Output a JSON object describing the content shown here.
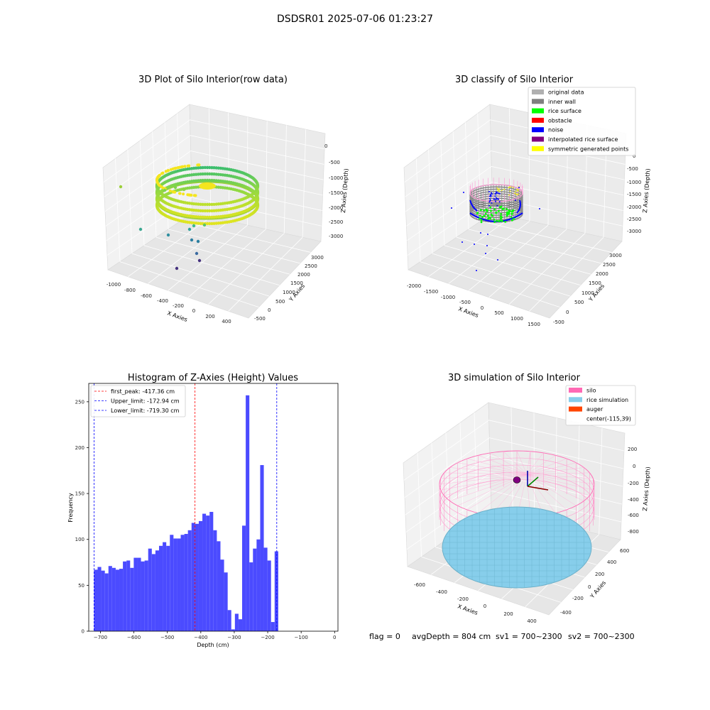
{
  "figure": {
    "suptitle": "DSDSR01 2025-07-06 01:23:27",
    "info_line": {
      "flag": "flag = 0",
      "avg_depth": "avgDepth = 804 cm",
      "sv1": "sv1 = 700~2300",
      "sv2": "sv2 = 700~2300"
    }
  },
  "panels": {
    "raw": {
      "title": "3D Plot of Silo Interior(row data)",
      "xlabel": "X Axies",
      "ylabel": "Y Axies",
      "zlabel": "Z Axies (Depth)",
      "xticks": [
        "-1000",
        "-800",
        "-600",
        "-400",
        "-200",
        "0",
        "200",
        "400"
      ],
      "yticks": [
        "-500",
        "0",
        "500",
        "1000",
        "1500",
        "2000",
        "2500",
        "3000"
      ],
      "zticks": [
        "0",
        "-500",
        "-1000",
        "-1500",
        "-2000",
        "-2500",
        "-3000"
      ]
    },
    "classify": {
      "title": "3D classify of Silo Interior",
      "xlabel": "X Axies",
      "ylabel": "Y Axies",
      "zlabel": "Z Axies (Depth)",
      "xticks": [
        "-2000",
        "-1500",
        "-1000",
        "-500",
        "0",
        "500",
        "1000",
        "1500"
      ],
      "yticks": [
        "-500",
        "0",
        "500",
        "1000",
        "1500",
        "2000",
        "2500",
        "3000"
      ],
      "zticks": [
        "0",
        "-500",
        "-1000",
        "-1500",
        "-2000",
        "-2500",
        "-3000"
      ],
      "legend": [
        {
          "label": "original data",
          "color": "#b0b0b0"
        },
        {
          "label": "inner wall",
          "color": "#808080"
        },
        {
          "label": "rice surface",
          "color": "#00ff00"
        },
        {
          "label": "obstacle",
          "color": "#ff0000"
        },
        {
          "label": "noise",
          "color": "#0000ff"
        },
        {
          "label": "interpolated rice surface",
          "color": "#800080"
        },
        {
          "label": "symmetric generated points",
          "color": "#ffff00"
        }
      ]
    },
    "simulation": {
      "title": "3D simulation of Silo Interior",
      "xlabel": "X Axies",
      "ylabel": "Y Axies",
      "zlabel": "Z Axies (Depth)",
      "xticks": [
        "-600",
        "-400",
        "-200",
        "0",
        "200",
        "400"
      ],
      "yticks": [
        "-400",
        "-200",
        "0",
        "200",
        "400",
        "600"
      ],
      "zticks": [
        "200",
        "0",
        "-200",
        "-400",
        "-600",
        "-800"
      ],
      "legend": [
        {
          "label": "silo",
          "color": "#ff69b4"
        },
        {
          "label": "rice simulation",
          "color": "#87ceeb"
        },
        {
          "label": "auger",
          "color": "#ff4500"
        },
        {
          "label": "center(-115,39)",
          "color": ""
        }
      ]
    }
  },
  "chart_data": [
    {
      "type": "histogram",
      "title": "Histogram of Z-Axies (Height) Values",
      "xlabel": "Depth (cm)",
      "ylabel": "Frequency",
      "bar_color": "#4b4bff",
      "xlim": [
        -735,
        10
      ],
      "ylim": [
        0,
        270
      ],
      "xticks": [
        -700,
        -600,
        -500,
        -400,
        -300,
        -200,
        -100,
        0
      ],
      "yticks": [
        0,
        50,
        100,
        150,
        200,
        250
      ],
      "bin_start": -719.3,
      "bin_width": 10.8,
      "values": [
        67,
        70,
        66,
        63,
        71,
        69,
        67,
        68,
        76,
        77,
        69,
        80,
        80,
        76,
        77,
        90,
        84,
        88,
        93,
        97,
        93,
        105,
        101,
        101,
        105,
        106,
        110,
        118,
        117,
        120,
        128,
        126,
        130,
        110,
        98,
        78,
        64,
        23,
        2,
        19,
        13,
        115,
        257,
        75,
        90,
        100,
        181,
        91,
        77,
        10,
        87
      ],
      "vlines": [
        {
          "label": "first_peak: -417.36 cm",
          "x": -417.36,
          "color": "#ff0000"
        },
        {
          "label": "Upper_limit: -172.94 cm",
          "x": -172.94,
          "color": "#0000ff"
        },
        {
          "label": "Lower_limit: -719.30 cm",
          "x": -719.3,
          "color": "#0000ff"
        }
      ]
    }
  ]
}
